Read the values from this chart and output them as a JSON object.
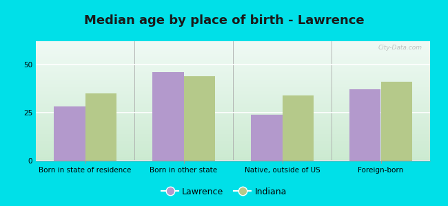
{
  "title": "Median age by place of birth - Lawrence",
  "categories": [
    "Born in state of residence",
    "Born in other state",
    "Native, outside of US",
    "Foreign-born"
  ],
  "lawrence_values": [
    28,
    46,
    24,
    37
  ],
  "indiana_values": [
    35,
    44,
    34,
    41
  ],
  "lawrence_color": "#b399cc",
  "indiana_color": "#b5c98a",
  "ylim": [
    0,
    62
  ],
  "yticks": [
    0,
    25,
    50
  ],
  "background_outer": "#00e0e8",
  "legend_lawrence": "Lawrence",
  "legend_indiana": "Indiana",
  "bar_width": 0.32,
  "title_fontsize": 13,
  "tick_fontsize": 7.5,
  "legend_fontsize": 9,
  "watermark": "City-Data.com"
}
